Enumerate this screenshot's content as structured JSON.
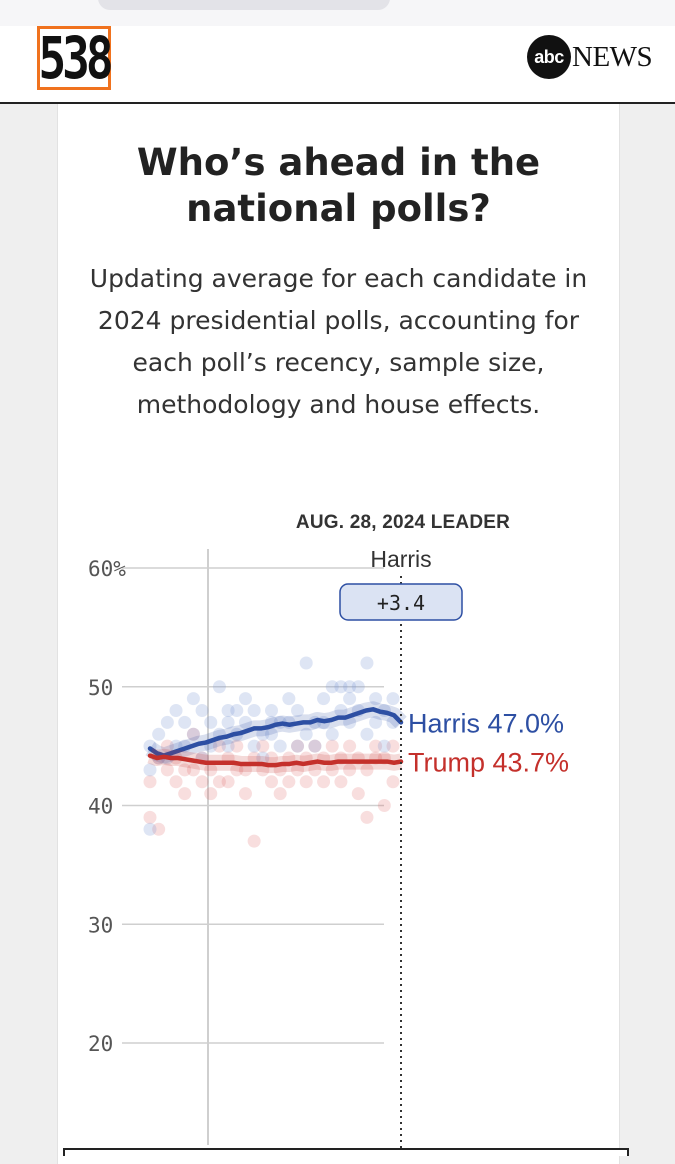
{
  "header": {
    "logo_left": "538",
    "logo_abc": "abc",
    "logo_news": "NEWS"
  },
  "article": {
    "title": "Who’s ahead in the national polls?",
    "subtitle": "Updating average for each candidate in 2024 presidential polls, accounting for each poll’s recency, sample size, methodology and house effects."
  },
  "chart_data": {
    "type": "line",
    "leader_heading": "AUG. 28, 2024 LEADER",
    "leader_name": "Harris",
    "leader_margin": "+3.4",
    "y_ticks": [
      "60%",
      "50",
      "40",
      "30",
      "20"
    ],
    "y_tick_values": [
      60,
      50,
      40,
      30,
      20
    ],
    "ylim": [
      16,
      62
    ],
    "grid": true,
    "x": [
      0,
      1,
      2,
      3,
      4,
      5,
      6,
      7,
      8,
      9,
      10,
      11,
      12,
      13,
      14,
      15,
      16,
      17,
      18,
      19,
      20,
      21,
      22,
      23,
      24,
      25,
      26,
      27,
      28,
      29,
      30,
      31,
      32,
      33,
      34,
      35,
      36
    ],
    "series": [
      {
        "name": "Harris",
        "color": "#2d4fa3",
        "end_label": "Harris 47.0%",
        "values": [
          44.8,
          44.4,
          44.2,
          44.4,
          44.6,
          44.8,
          45.0,
          45.2,
          45.3,
          45.5,
          45.7,
          45.8,
          46.0,
          46.1,
          46.3,
          46.5,
          46.5,
          46.6,
          46.8,
          46.9,
          46.8,
          46.9,
          47.0,
          47.0,
          47.2,
          47.1,
          47.2,
          47.4,
          47.4,
          47.6,
          47.8,
          48.0,
          48.1,
          47.9,
          47.8,
          47.6,
          47.0
        ]
      },
      {
        "name": "Trump",
        "color": "#c4302b",
        "end_label": "Trump 43.7%",
        "values": [
          44.2,
          44.0,
          44.1,
          44.0,
          44.0,
          43.9,
          43.8,
          43.7,
          43.6,
          43.6,
          43.6,
          43.6,
          43.6,
          43.5,
          43.5,
          43.5,
          43.5,
          43.4,
          43.4,
          43.5,
          43.5,
          43.6,
          43.5,
          43.6,
          43.7,
          43.6,
          43.6,
          43.7,
          43.7,
          43.7,
          43.7,
          43.7,
          43.7,
          43.7,
          43.7,
          43.6,
          43.7
        ]
      }
    ],
    "polls": {
      "harris": [
        [
          0,
          43
        ],
        [
          0,
          45
        ],
        [
          1,
          46
        ],
        [
          1,
          44
        ],
        [
          2,
          47
        ],
        [
          2,
          44
        ],
        [
          3,
          45
        ],
        [
          3,
          48
        ],
        [
          4,
          45
        ],
        [
          4,
          47
        ],
        [
          5,
          46
        ],
        [
          5,
          49
        ],
        [
          6,
          44
        ],
        [
          6,
          48
        ],
        [
          7,
          47
        ],
        [
          7,
          45
        ],
        [
          8,
          50
        ],
        [
          8,
          46
        ],
        [
          9,
          47
        ],
        [
          9,
          45
        ],
        [
          10,
          48
        ],
        [
          10,
          46
        ],
        [
          11,
          49
        ],
        [
          11,
          47
        ],
        [
          12,
          45
        ],
        [
          12,
          48
        ],
        [
          13,
          46
        ],
        [
          13,
          44
        ],
        [
          14,
          48
        ],
        [
          14,
          46
        ],
        [
          15,
          47
        ],
        [
          15,
          45
        ],
        [
          16,
          49
        ],
        [
          16,
          47
        ],
        [
          17,
          45
        ],
        [
          17,
          48
        ],
        [
          18,
          46
        ],
        [
          18,
          52
        ],
        [
          19,
          47
        ],
        [
          19,
          45
        ],
        [
          20,
          49
        ],
        [
          20,
          47
        ],
        [
          21,
          50
        ],
        [
          21,
          46
        ],
        [
          22,
          48
        ],
        [
          22,
          50
        ],
        [
          23,
          47
        ],
        [
          23,
          49
        ],
        [
          24,
          50
        ],
        [
          24,
          48
        ],
        [
          25,
          46
        ],
        [
          25,
          52
        ],
        [
          26,
          49
        ],
        [
          26,
          47
        ],
        [
          27,
          48
        ],
        [
          27,
          45
        ],
        [
          28,
          49
        ],
        [
          28,
          47
        ],
        [
          0,
          38
        ],
        [
          9,
          48
        ],
        [
          14,
          47
        ],
        [
          23,
          50
        ]
      ],
      "trump": [
        [
          0,
          39
        ],
        [
          0,
          42
        ],
        [
          1,
          38
        ],
        [
          1,
          44
        ],
        [
          2,
          43
        ],
        [
          2,
          45
        ],
        [
          3,
          42
        ],
        [
          3,
          44
        ],
        [
          4,
          41
        ],
        [
          4,
          43
        ],
        [
          5,
          43
        ],
        [
          5,
          46
        ],
        [
          6,
          42
        ],
        [
          6,
          44
        ],
        [
          7,
          43
        ],
        [
          7,
          41
        ],
        [
          8,
          42
        ],
        [
          8,
          45
        ],
        [
          9,
          44
        ],
        [
          9,
          42
        ],
        [
          10,
          43
        ],
        [
          10,
          45
        ],
        [
          11,
          43
        ],
        [
          11,
          41
        ],
        [
          12,
          37
        ],
        [
          12,
          44
        ],
        [
          13,
          43
        ],
        [
          13,
          45
        ],
        [
          14,
          42
        ],
        [
          14,
          44
        ],
        [
          15,
          43
        ],
        [
          15,
          41
        ],
        [
          16,
          44
        ],
        [
          16,
          42
        ],
        [
          17,
          43
        ],
        [
          17,
          45
        ],
        [
          18,
          44
        ],
        [
          18,
          42
        ],
        [
          19,
          43
        ],
        [
          19,
          45
        ],
        [
          20,
          44
        ],
        [
          20,
          42
        ],
        [
          21,
          43
        ],
        [
          21,
          45
        ],
        [
          22,
          44
        ],
        [
          22,
          42
        ],
        [
          23,
          45
        ],
        [
          23,
          43
        ],
        [
          24,
          41
        ],
        [
          24,
          44
        ],
        [
          25,
          43
        ],
        [
          25,
          39
        ],
        [
          26,
          45
        ],
        [
          26,
          44
        ],
        [
          27,
          40
        ],
        [
          27,
          44
        ],
        [
          28,
          45
        ],
        [
          28,
          42
        ]
      ]
    }
  }
}
